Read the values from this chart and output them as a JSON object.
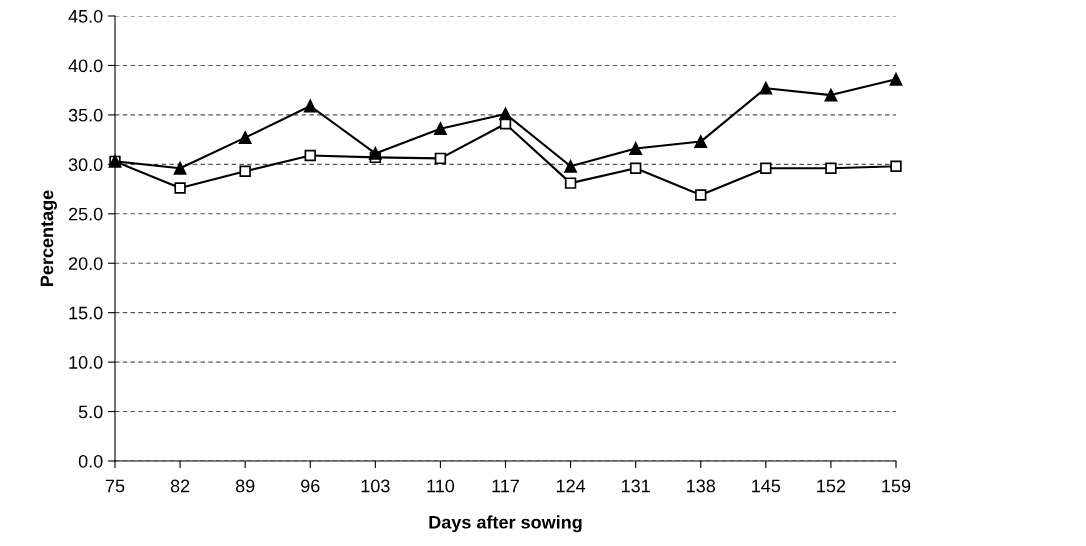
{
  "chart_data": {
    "type": "line",
    "xlabel": "Days after sowing",
    "ylabel": "Percentage",
    "x": [
      75,
      82,
      89,
      96,
      103,
      110,
      117,
      124,
      131,
      138,
      145,
      152,
      159
    ],
    "xlim": [
      75,
      159
    ],
    "xticks": [
      75,
      82,
      89,
      96,
      103,
      110,
      117,
      124,
      131,
      138,
      145,
      152,
      159
    ],
    "ylim": [
      0,
      45
    ],
    "yticks": [
      {
        "value": 0,
        "label": "0.0"
      },
      {
        "value": 5,
        "label": "5.0"
      },
      {
        "value": 10,
        "label": "10.0"
      },
      {
        "value": 15,
        "label": "15.0"
      },
      {
        "value": 20,
        "label": "20.0"
      },
      {
        "value": 25,
        "label": "25.0"
      },
      {
        "value": 30,
        "label": "30.0"
      },
      {
        "value": 35,
        "label": "35.0"
      },
      {
        "value": 40,
        "label": "40.0"
      },
      {
        "value": 45,
        "label": "45.0"
      }
    ],
    "grid": "y",
    "legend": false,
    "line_style": "solid",
    "series": [
      {
        "color": "#000000",
        "marker": "triangle",
        "values": [
          30.3,
          29.6,
          32.7,
          35.9,
          31.1,
          33.6,
          35.1,
          29.8,
          31.6,
          32.3,
          37.7,
          37.0,
          38.6
        ]
      },
      {
        "color": "#000000",
        "marker": "square",
        "values": [
          30.3,
          27.6,
          29.3,
          30.9,
          30.7,
          30.6,
          34.1,
          28.1,
          29.6,
          26.9,
          29.6,
          29.6,
          29.8
        ]
      }
    ]
  }
}
